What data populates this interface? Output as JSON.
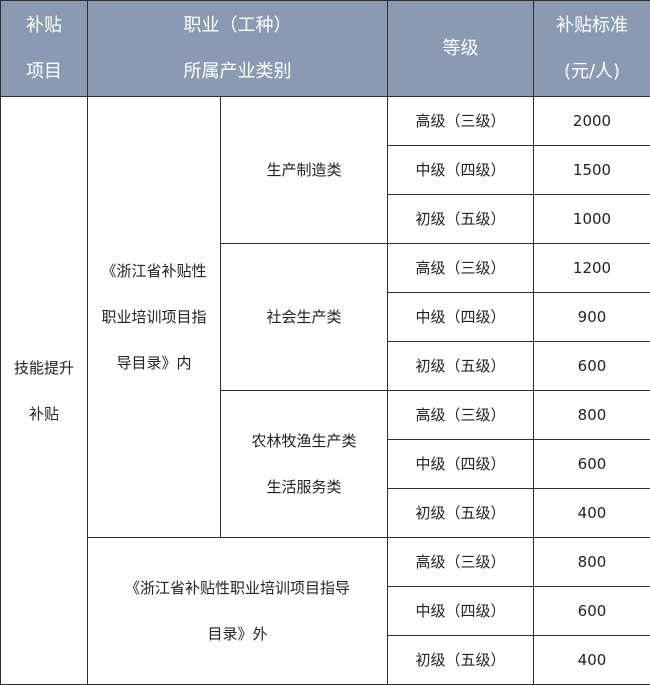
{
  "header": {
    "item": [
      "补贴",
      "项目"
    ],
    "occupation": [
      "职业（工种）",
      "所属产业类别"
    ],
    "level": "等级",
    "standard": [
      "补贴标准",
      "(元/人)"
    ]
  },
  "colors": {
    "header_bg": "#8a9ab3",
    "header_text": "#ffffff",
    "border": "#2a2d33"
  },
  "subsidy_item": [
    "技能提升",
    "补贴"
  ],
  "groups": [
    {
      "scope": [
        "《浙江省补贴性",
        "职业培训项目指",
        "导目录》内"
      ],
      "categories": [
        {
          "name": [
            "生产制造类"
          ],
          "rows": [
            {
              "level": "高级（三级）",
              "amount": "2000"
            },
            {
              "level": "中级（四级）",
              "amount": "1500"
            },
            {
              "level": "初级（五级）",
              "amount": "1000"
            }
          ]
        },
        {
          "name": [
            "社会生产类"
          ],
          "rows": [
            {
              "level": "高级（三级）",
              "amount": "1200"
            },
            {
              "level": "中级（四级）",
              "amount": "900"
            },
            {
              "level": "初级（五级）",
              "amount": "600"
            }
          ]
        },
        {
          "name": [
            "农林牧渔生产类",
            "生活服务类"
          ],
          "rows": [
            {
              "level": "高级（三级）",
              "amount": "800"
            },
            {
              "level": "中级（四级）",
              "amount": "600"
            },
            {
              "level": "初级（五级）",
              "amount": "400"
            }
          ]
        }
      ]
    },
    {
      "scope": [
        "《浙江省补贴性职业培训项目指导",
        "目录》外"
      ],
      "rows": [
        {
          "level": "高级（三级）",
          "amount": "800"
        },
        {
          "level": "中级（四级）",
          "amount": "600"
        },
        {
          "level": "初级（五级）",
          "amount": "400"
        }
      ]
    }
  ]
}
